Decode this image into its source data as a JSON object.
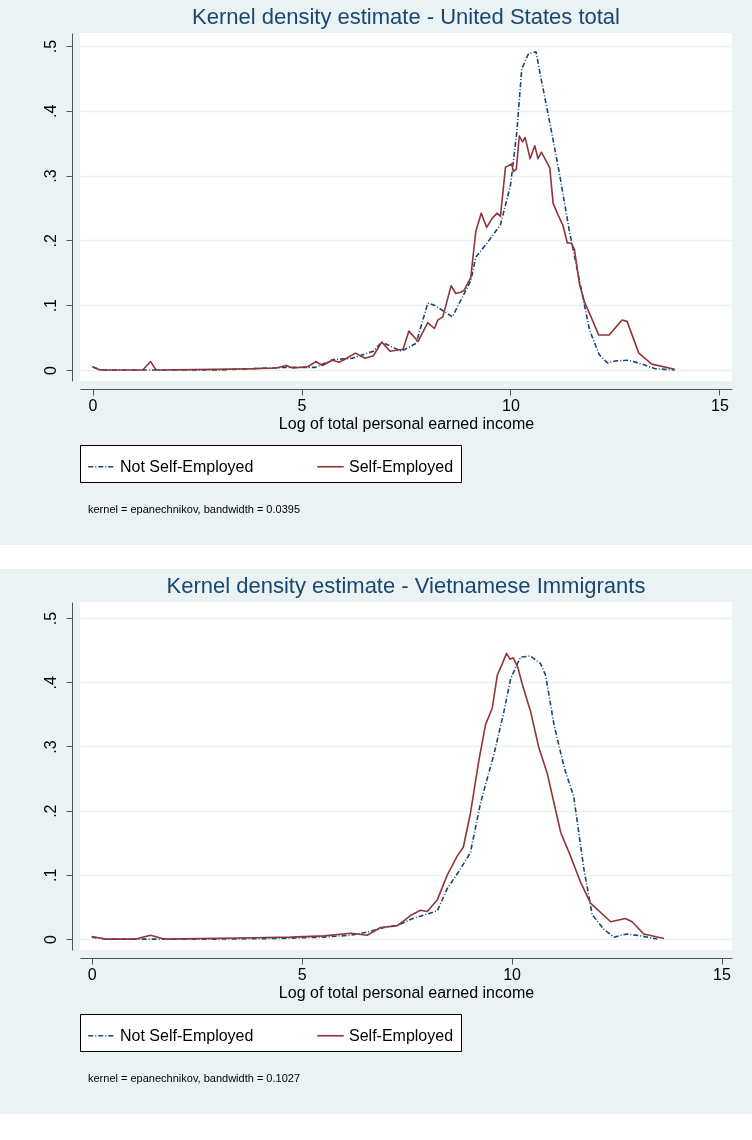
{
  "chart_data": [
    {
      "type": "line",
      "title": "Kernel density estimate - United States total",
      "xlabel": "Log of total personal earned income",
      "xlim": [
        -0.3,
        15.3
      ],
      "ylim": [
        -0.017,
        0.52
      ],
      "xticks": [
        0,
        5,
        10,
        15
      ],
      "yticks": [
        0,
        {
          "value": 0.1,
          "label": ".1"
        },
        {
          "value": 0.2,
          "label": ".2"
        },
        {
          "value": 0.3,
          "label": ".3"
        },
        {
          "value": 0.4,
          "label": ".4"
        },
        {
          "value": 0.5,
          "label": ".5"
        }
      ],
      "grid": "y",
      "legend": "bottom",
      "annotations": [
        "kernel = epanechnikov, bandwidth = 0.0395"
      ],
      "series": [
        {
          "name": "Not Self-Employed",
          "color": "#1a476f",
          "line_style": "dashed",
          "x": [
            0,
            0.18,
            1.5,
            3,
            4.63,
            5.34,
            5.74,
            6.21,
            6.72,
            6.92,
            7.39,
            7.74,
            8.02,
            8.18,
            8.61,
            9.05,
            9.17,
            9.44,
            9.76,
            10.0,
            10.15,
            10.27,
            10.43,
            10.61,
            10.74,
            10.94,
            11.18,
            11.41,
            11.65,
            11.89,
            12.12,
            12.32,
            12.52,
            12.83,
            13.15,
            13.46,
            13.93
          ],
          "values": [
            0.005,
            0,
            0,
            0,
            0.004,
            0.004,
            0.016,
            0.018,
            0.029,
            0.043,
            0.029,
            0.041,
            0.103,
            0.1,
            0.082,
            0.138,
            0.174,
            0.196,
            0.224,
            0.285,
            0.366,
            0.465,
            0.488,
            0.491,
            0.447,
            0.382,
            0.3,
            0.214,
            0.138,
            0.062,
            0.024,
            0.011,
            0.014,
            0.015,
            0.009,
            0.002,
            0
          ]
        },
        {
          "name": "Self-Employed",
          "color": "#90353b",
          "line_style": "solid",
          "x": [
            0,
            0.18,
            1.2,
            1.39,
            1.52,
            2.9,
            3.85,
            4.4,
            4.63,
            4.79,
            5.15,
            5.34,
            5.5,
            5.74,
            5.9,
            6.05,
            6.29,
            6.52,
            6.72,
            6.92,
            7.12,
            7.43,
            7.57,
            7.79,
            8.02,
            8.18,
            8.26,
            8.38,
            8.58,
            8.69,
            8.81,
            8.89,
            9.05,
            9.17,
            9.3,
            9.43,
            9.56,
            9.68,
            9.76,
            9.88,
            10.03,
            10.07,
            10.14,
            10.21,
            10.29,
            10.35,
            10.47,
            10.58,
            10.66,
            10.74,
            10.94,
            11.02,
            11.14,
            11.25,
            11.36,
            11.45,
            11.53,
            11.65,
            11.77,
            11.96,
            12.11,
            12.36,
            12.67,
            12.79,
            13.07,
            13.38,
            13.93
          ],
          "values": [
            0.005,
            0,
            0,
            0.013,
            0,
            0.001,
            0.002,
            0.003,
            0.007,
            0.003,
            0.005,
            0.013,
            0.007,
            0.015,
            0.012,
            0.017,
            0.026,
            0.018,
            0.022,
            0.043,
            0.029,
            0.032,
            0.06,
            0.044,
            0.073,
            0.064,
            0.077,
            0.082,
            0.13,
            0.118,
            0.12,
            0.123,
            0.143,
            0.214,
            0.242,
            0.22,
            0.234,
            0.242,
            0.237,
            0.313,
            0.318,
            0.306,
            0.31,
            0.361,
            0.352,
            0.359,
            0.326,
            0.346,
            0.326,
            0.336,
            0.312,
            0.257,
            0.239,
            0.224,
            0.196,
            0.196,
            0.186,
            0.133,
            0.105,
            0.077,
            0.054,
            0.054,
            0.077,
            0.075,
            0.026,
            0.009,
            0.001
          ]
        }
      ]
    },
    {
      "type": "line",
      "title": "Kernel density estimate - Vietnamese Immigrants",
      "xlabel": "Log of total personal earned income",
      "xlim": [
        -0.28,
        15.25
      ],
      "ylim": [
        -0.017,
        0.525
      ],
      "xticks": [
        0,
        5,
        10,
        15
      ],
      "yticks": [
        0,
        {
          "value": 0.1,
          "label": ".1"
        },
        {
          "value": 0.2,
          "label": ".2"
        },
        {
          "value": 0.3,
          "label": ".3"
        },
        {
          "value": 0.4,
          "label": ".4"
        },
        {
          "value": 0.5,
          "label": ".5"
        }
      ],
      "grid": "y",
      "legend": "bottom",
      "annotations": [
        "kernel = epanechnikov, bandwidth = 0.1027"
      ],
      "series": [
        {
          "name": "Not Self-Employed",
          "color": "#1a476f",
          "line_style": "dashed",
          "x": [
            0,
            0.33,
            1.5,
            3,
            4.5,
            5.5,
            6.17,
            6.56,
            6.96,
            7.28,
            7.6,
            8.23,
            8.47,
            8.79,
            9.02,
            9.26,
            9.58,
            9.82,
            9.98,
            10.21,
            10.45,
            10.69,
            10.81,
            11.01,
            11.25,
            11.48,
            11.72,
            11.92,
            12.2,
            12.44,
            12.75,
            13.07,
            13.47
          ],
          "values": [
            0.003,
            0,
            0,
            0,
            0.001,
            0.003,
            0.006,
            0.011,
            0.018,
            0.021,
            0.031,
            0.044,
            0.079,
            0.11,
            0.135,
            0.212,
            0.288,
            0.355,
            0.406,
            0.439,
            0.441,
            0.429,
            0.411,
            0.334,
            0.268,
            0.222,
            0.11,
            0.038,
            0.015,
            0.003,
            0.008,
            0.005,
            0
          ]
        },
        {
          "name": "Self-Employed",
          "color": "#90353b",
          "line_style": "solid",
          "x": [
            0,
            0.33,
            1.05,
            1.4,
            1.72,
            4.74,
            5.53,
            6.17,
            6.56,
            6.88,
            7.28,
            7.6,
            7.83,
            7.99,
            8.23,
            8.47,
            8.71,
            8.85,
            9.02,
            9.22,
            9.38,
            9.54,
            9.66,
            9.78,
            9.88,
            9.96,
            10.04,
            10.15,
            10.25,
            10.45,
            10.65,
            10.85,
            11.01,
            11.17,
            11.4,
            11.64,
            11.88,
            12.36,
            12.71,
            12.87,
            13.15,
            13.63
          ],
          "values": [
            0.004,
            0,
            0,
            0.006,
            0,
            0.003,
            0.005,
            0.009,
            0.006,
            0.018,
            0.021,
            0.037,
            0.045,
            0.043,
            0.061,
            0.1,
            0.13,
            0.143,
            0.196,
            0.278,
            0.334,
            0.36,
            0.411,
            0.429,
            0.445,
            0.436,
            0.438,
            0.423,
            0.398,
            0.355,
            0.298,
            0.258,
            0.212,
            0.166,
            0.13,
            0.089,
            0.056,
            0.027,
            0.032,
            0.027,
            0.008,
            0.001
          ]
        }
      ]
    }
  ]
}
